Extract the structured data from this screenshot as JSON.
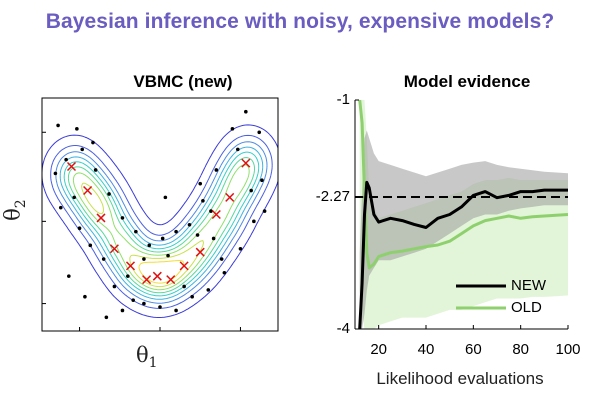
{
  "headline": "Bayesian inference with noisy, expensive models?",
  "left_panel": {
    "title": "VBMC (new)",
    "xlabel_symbol": "θ",
    "xlabel_sub": "1",
    "ylabel_symbol": "θ",
    "ylabel_sub": "2"
  },
  "chart_data": [
    {
      "type": "contour",
      "title": "VBMC (new)",
      "xlabel": "θ1",
      "ylabel": "θ2",
      "description_free": true,
      "components_x": [
        -1.6,
        -1.3,
        -1.05,
        -0.75,
        -0.45,
        -0.1,
        0.2,
        0.55,
        0.85,
        1.15,
        1.4,
        1.65
      ],
      "components_y": [
        0.9,
        0.6,
        0.3,
        -0.1,
        -0.45,
        -0.6,
        -0.55,
        -0.35,
        -0.05,
        0.3,
        0.7,
        1.05
      ],
      "center_markers": [
        [
          -1.65,
          1.0
        ],
        [
          -1.35,
          0.65
        ],
        [
          -1.1,
          0.25
        ],
        [
          -0.85,
          -0.2
        ],
        [
          -0.55,
          -0.45
        ],
        [
          -0.25,
          -0.65
        ],
        [
          -0.05,
          -0.6
        ],
        [
          0.2,
          -0.65
        ],
        [
          0.45,
          -0.45
        ],
        [
          0.75,
          -0.25
        ],
        [
          1.05,
          0.3
        ],
        [
          1.3,
          0.55
        ],
        [
          1.6,
          1.05
        ]
      ],
      "samples": [
        [
          -1.75,
          1.1
        ],
        [
          -1.85,
          0.4
        ],
        [
          -1.5,
          0.1
        ],
        [
          -1.25,
          1.35
        ],
        [
          -1.9,
          1.6
        ],
        [
          -1.7,
          -0.6
        ],
        [
          -1.4,
          -0.9
        ],
        [
          -1.0,
          -1.2
        ],
        [
          -0.7,
          -1.1
        ],
        [
          -0.5,
          -0.95
        ],
        [
          -0.3,
          -1.0
        ],
        [
          0.0,
          -1.05
        ],
        [
          0.3,
          -1.1
        ],
        [
          0.6,
          -0.9
        ],
        [
          0.9,
          -0.8
        ],
        [
          1.2,
          -0.55
        ],
        [
          1.5,
          -0.2
        ],
        [
          1.75,
          0.2
        ],
        [
          1.9,
          0.8
        ],
        [
          1.85,
          1.5
        ],
        [
          1.6,
          1.8
        ],
        [
          1.35,
          1.55
        ],
        [
          1.05,
          0.95
        ],
        [
          0.8,
          0.5
        ],
        [
          0.55,
          0.15
        ],
        [
          0.3,
          0.05
        ],
        [
          0.05,
          -0.05
        ],
        [
          -0.2,
          -0.15
        ],
        [
          -0.45,
          0.05
        ],
        [
          -0.7,
          0.25
        ],
        [
          -0.95,
          0.6
        ],
        [
          -1.2,
          0.95
        ],
        [
          -1.45,
          1.25
        ],
        [
          -1.05,
          -0.35
        ],
        [
          -0.3,
          -0.35
        ],
        [
          0.15,
          -0.3
        ],
        [
          0.7,
          0.0
        ],
        [
          1.0,
          -0.05
        ],
        [
          -1.6,
          0.55
        ],
        [
          1.45,
          1.25
        ],
        [
          -0.85,
          -0.75
        ],
        [
          0.45,
          -0.75
        ],
        [
          1.95,
          0.35
        ],
        [
          -1.95,
          0.9
        ],
        [
          0.1,
          0.55
        ],
        [
          0.75,
          0.75
        ],
        [
          1.15,
          -0.35
        ],
        [
          -1.3,
          -0.15
        ],
        [
          -0.6,
          -0.6
        ],
        [
          0.95,
          0.35
        ],
        [
          1.7,
          0.65
        ],
        [
          -1.55,
          1.55
        ]
      ],
      "contour_levels": 9
    },
    {
      "type": "line",
      "title": "Model evidence",
      "xlabel": "Likelihood evaluations",
      "ylabel": "",
      "xlim": [
        10,
        100
      ],
      "ylim": [
        -4,
        -1
      ],
      "yticks": [
        -1,
        -2.27,
        -4
      ],
      "ytick_labels": [
        "-1",
        "-2.27",
        "-4"
      ],
      "xticks": [
        20,
        40,
        60,
        80,
        100
      ],
      "reference_line": {
        "y": -2.27,
        "style": "dashed"
      },
      "legend_position": "bottom-right",
      "series": [
        {
          "name": "NEW",
          "color": "#000000",
          "x": [
            12,
            13,
            14,
            15,
            16,
            18,
            20,
            25,
            30,
            35,
            40,
            45,
            50,
            55,
            60,
            65,
            70,
            75,
            80,
            85,
            90,
            95,
            100
          ],
          "y": [
            -4.0,
            -3.4,
            -2.5,
            -2.08,
            -2.15,
            -2.5,
            -2.6,
            -2.55,
            -2.58,
            -2.63,
            -2.67,
            -2.55,
            -2.5,
            -2.4,
            -2.25,
            -2.2,
            -2.28,
            -2.25,
            -2.2,
            -2.2,
            -2.18,
            -2.18,
            -2.18
          ],
          "band_low": [
            -4.0,
            -4.0,
            -3.8,
            -3.5,
            -3.3,
            -3.2,
            -3.1,
            -3.1,
            -3.05,
            -3.0,
            -2.95,
            -2.85,
            -2.75,
            -2.65,
            -2.55,
            -2.5,
            -2.5,
            -2.45,
            -2.42,
            -2.4,
            -2.38,
            -2.38,
            -2.38
          ],
          "band_high": [
            -3.0,
            -2.2,
            -1.5,
            -1.4,
            -1.5,
            -1.7,
            -1.8,
            -1.85,
            -1.9,
            -1.95,
            -2.0,
            -1.95,
            -1.9,
            -1.85,
            -1.82,
            -1.8,
            -1.85,
            -1.88,
            -1.9,
            -1.92,
            -1.94,
            -1.95,
            -1.96
          ]
        },
        {
          "name": "OLD",
          "color": "#8fd06e",
          "x": [
            12,
            13,
            14,
            15,
            16,
            18,
            20,
            25,
            30,
            35,
            40,
            45,
            50,
            55,
            60,
            65,
            70,
            75,
            80,
            85,
            90,
            95,
            100
          ],
          "y": [
            -1.0,
            -1.3,
            -2.2,
            -3.0,
            -3.2,
            -3.15,
            -3.05,
            -3.0,
            -2.98,
            -2.95,
            -2.92,
            -2.9,
            -2.85,
            -2.75,
            -2.65,
            -2.58,
            -2.55,
            -2.52,
            -2.55,
            -2.53,
            -2.52,
            -2.51,
            -2.5
          ],
          "band_low": [
            -3.5,
            -3.8,
            -4.0,
            -4.0,
            -4.0,
            -4.0,
            -3.95,
            -3.9,
            -3.85,
            -3.85,
            -3.85,
            -3.8,
            -3.75,
            -3.75,
            -3.7,
            -3.65,
            -3.6,
            -3.6,
            -3.6,
            -3.58,
            -3.58,
            -3.57,
            -3.56
          ],
          "band_high": [
            -1.0,
            -1.0,
            -1.0,
            -1.5,
            -2.2,
            -2.4,
            -2.55,
            -2.5,
            -2.45,
            -2.4,
            -2.35,
            -2.3,
            -2.25,
            -2.2,
            -2.1,
            -2.05,
            -2.05,
            -2.02,
            -2.05,
            -2.05,
            -2.05,
            -2.05,
            -2.05
          ]
        }
      ]
    }
  ]
}
